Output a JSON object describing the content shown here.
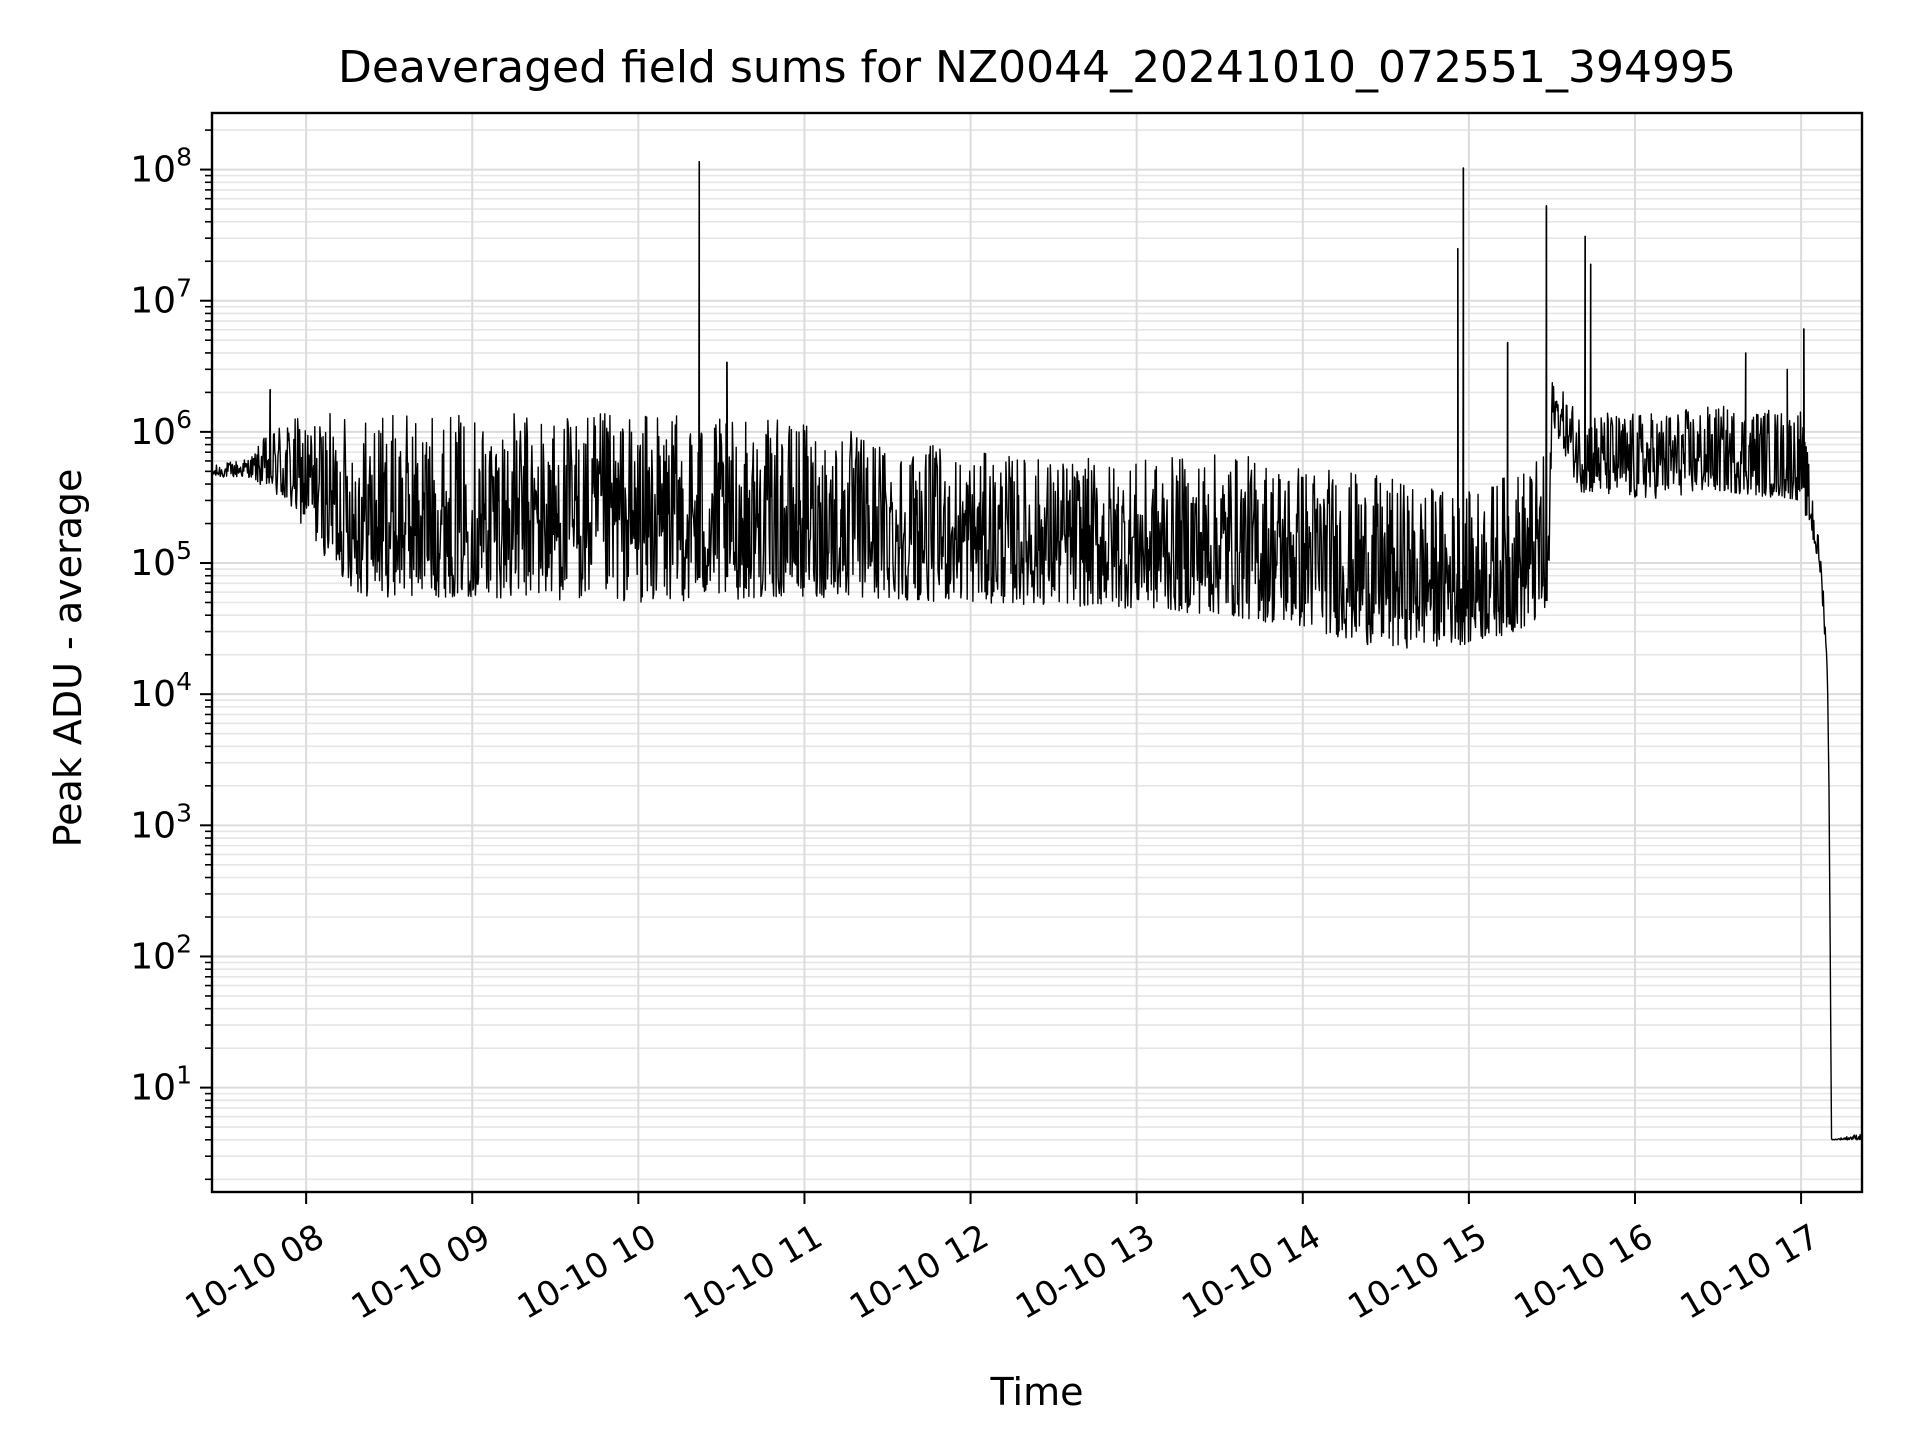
{
  "chart_data": {
    "type": "line",
    "title": "Deaveraged field sums for NZ0044_20241010_072551_394995",
    "xlabel": "Time",
    "ylabel": "Peak ADU - average",
    "yscale": "log",
    "xlim": [
      "2024-10-10T07:26",
      "2024-10-10T17:22"
    ],
    "ylim": [
      1.6,
      270000000.0
    ],
    "x_ticks": [
      {
        "t": "2024-10-10T08:00",
        "label": "10-10 08"
      },
      {
        "t": "2024-10-10T09:00",
        "label": "10-10 09"
      },
      {
        "t": "2024-10-10T10:00",
        "label": "10-10 10"
      },
      {
        "t": "2024-10-10T11:00",
        "label": "10-10 11"
      },
      {
        "t": "2024-10-10T12:00",
        "label": "10-10 12"
      },
      {
        "t": "2024-10-10T13:00",
        "label": "10-10 13"
      },
      {
        "t": "2024-10-10T14:00",
        "label": "10-10 14"
      },
      {
        "t": "2024-10-10T15:00",
        "label": "10-10 15"
      },
      {
        "t": "2024-10-10T16:00",
        "label": "10-10 16"
      },
      {
        "t": "2024-10-10T17:00",
        "label": "10-10 17"
      }
    ],
    "y_ticks": [
      {
        "value": 10,
        "base": "10",
        "exp": "1"
      },
      {
        "value": 100,
        "base": "10",
        "exp": "2"
      },
      {
        "value": 1000,
        "base": "10",
        "exp": "3"
      },
      {
        "value": 10000,
        "base": "10",
        "exp": "4"
      },
      {
        "value": 100000,
        "base": "10",
        "exp": "5"
      },
      {
        "value": 1000000,
        "base": "10",
        "exp": "6"
      },
      {
        "value": 10000000,
        "base": "10",
        "exp": "7"
      },
      {
        "value": 100000000,
        "base": "10",
        "exp": "8"
      }
    ],
    "grid": true,
    "series": [
      {
        "color": "#000000",
        "envelope": [
          {
            "t": "2024-10-10T07:26",
            "low": 450000,
            "high": 550000
          },
          {
            "t": "2024-10-10T07:40",
            "low": 450000,
            "high": 650000
          },
          {
            "t": "2024-10-10T07:50",
            "low": 300000,
            "high": 1300000
          },
          {
            "t": "2024-10-10T08:00",
            "low": 180000,
            "high": 1300000
          },
          {
            "t": "2024-10-10T08:10",
            "low": 90000,
            "high": 1400000
          },
          {
            "t": "2024-10-10T08:20",
            "low": 55000,
            "high": 1400000
          },
          {
            "t": "2024-10-10T09:00",
            "low": 55000,
            "high": 1400000
          },
          {
            "t": "2024-10-10T10:00",
            "low": 50000,
            "high": 1400000
          },
          {
            "t": "2024-10-10T11:00",
            "low": 55000,
            "high": 1200000
          },
          {
            "t": "2024-10-10T12:00",
            "low": 50000,
            "high": 700000
          },
          {
            "t": "2024-10-10T13:00",
            "low": 45000,
            "high": 600000
          },
          {
            "t": "2024-10-10T13:30",
            "low": 40000,
            "high": 700000
          },
          {
            "t": "2024-10-10T14:00",
            "low": 32000,
            "high": 600000
          },
          {
            "t": "2024-10-10T14:30",
            "low": 22000,
            "high": 450000
          },
          {
            "t": "2024-10-10T15:00",
            "low": 24000,
            "high": 350000
          },
          {
            "t": "2024-10-10T15:29",
            "low": 35000,
            "high": 700000
          },
          {
            "t": "2024-10-10T15:30",
            "low": 1200000,
            "high": 2500000
          },
          {
            "t": "2024-10-10T15:40",
            "low": 350000,
            "high": 1500000
          },
          {
            "t": "2024-10-10T16:00",
            "low": 300000,
            "high": 1400000
          },
          {
            "t": "2024-10-10T16:30",
            "low": 350000,
            "high": 1600000
          },
          {
            "t": "2024-10-10T17:00",
            "low": 300000,
            "high": 1500000
          },
          {
            "t": "2024-10-10T17:04",
            "low": 150000,
            "high": 400000
          },
          {
            "t": "2024-10-10T17:07",
            "low": 80000,
            "high": 120000
          },
          {
            "t": "2024-10-10T17:09",
            "low": 20000,
            "high": 40000
          },
          {
            "t": "2024-10-10T17:10",
            "low": 3000,
            "high": 6000
          },
          {
            "t": "2024-10-10T17:11",
            "low": 4,
            "high": 4
          },
          {
            "t": "2024-10-10T17:22",
            "low": 4,
            "high": 4.5
          }
        ],
        "spikes": [
          {
            "t": "2024-10-10T07:47",
            "value": 2100000
          },
          {
            "t": "2024-10-10T10:22",
            "value": 115000000
          },
          {
            "t": "2024-10-10T10:32",
            "value": 3400000
          },
          {
            "t": "2024-10-10T14:56",
            "value": 25000000
          },
          {
            "t": "2024-10-10T14:58",
            "value": 103000000
          },
          {
            "t": "2024-10-10T15:14",
            "value": 4800000
          },
          {
            "t": "2024-10-10T15:28",
            "value": 53000000
          },
          {
            "t": "2024-10-10T15:42",
            "value": 31000000
          },
          {
            "t": "2024-10-10T15:44",
            "value": 19000000
          },
          {
            "t": "2024-10-10T16:40",
            "value": 4000000
          },
          {
            "t": "2024-10-10T16:55",
            "value": 3000000
          },
          {
            "t": "2024-10-10T17:01",
            "value": 6100000
          }
        ]
      }
    ]
  }
}
